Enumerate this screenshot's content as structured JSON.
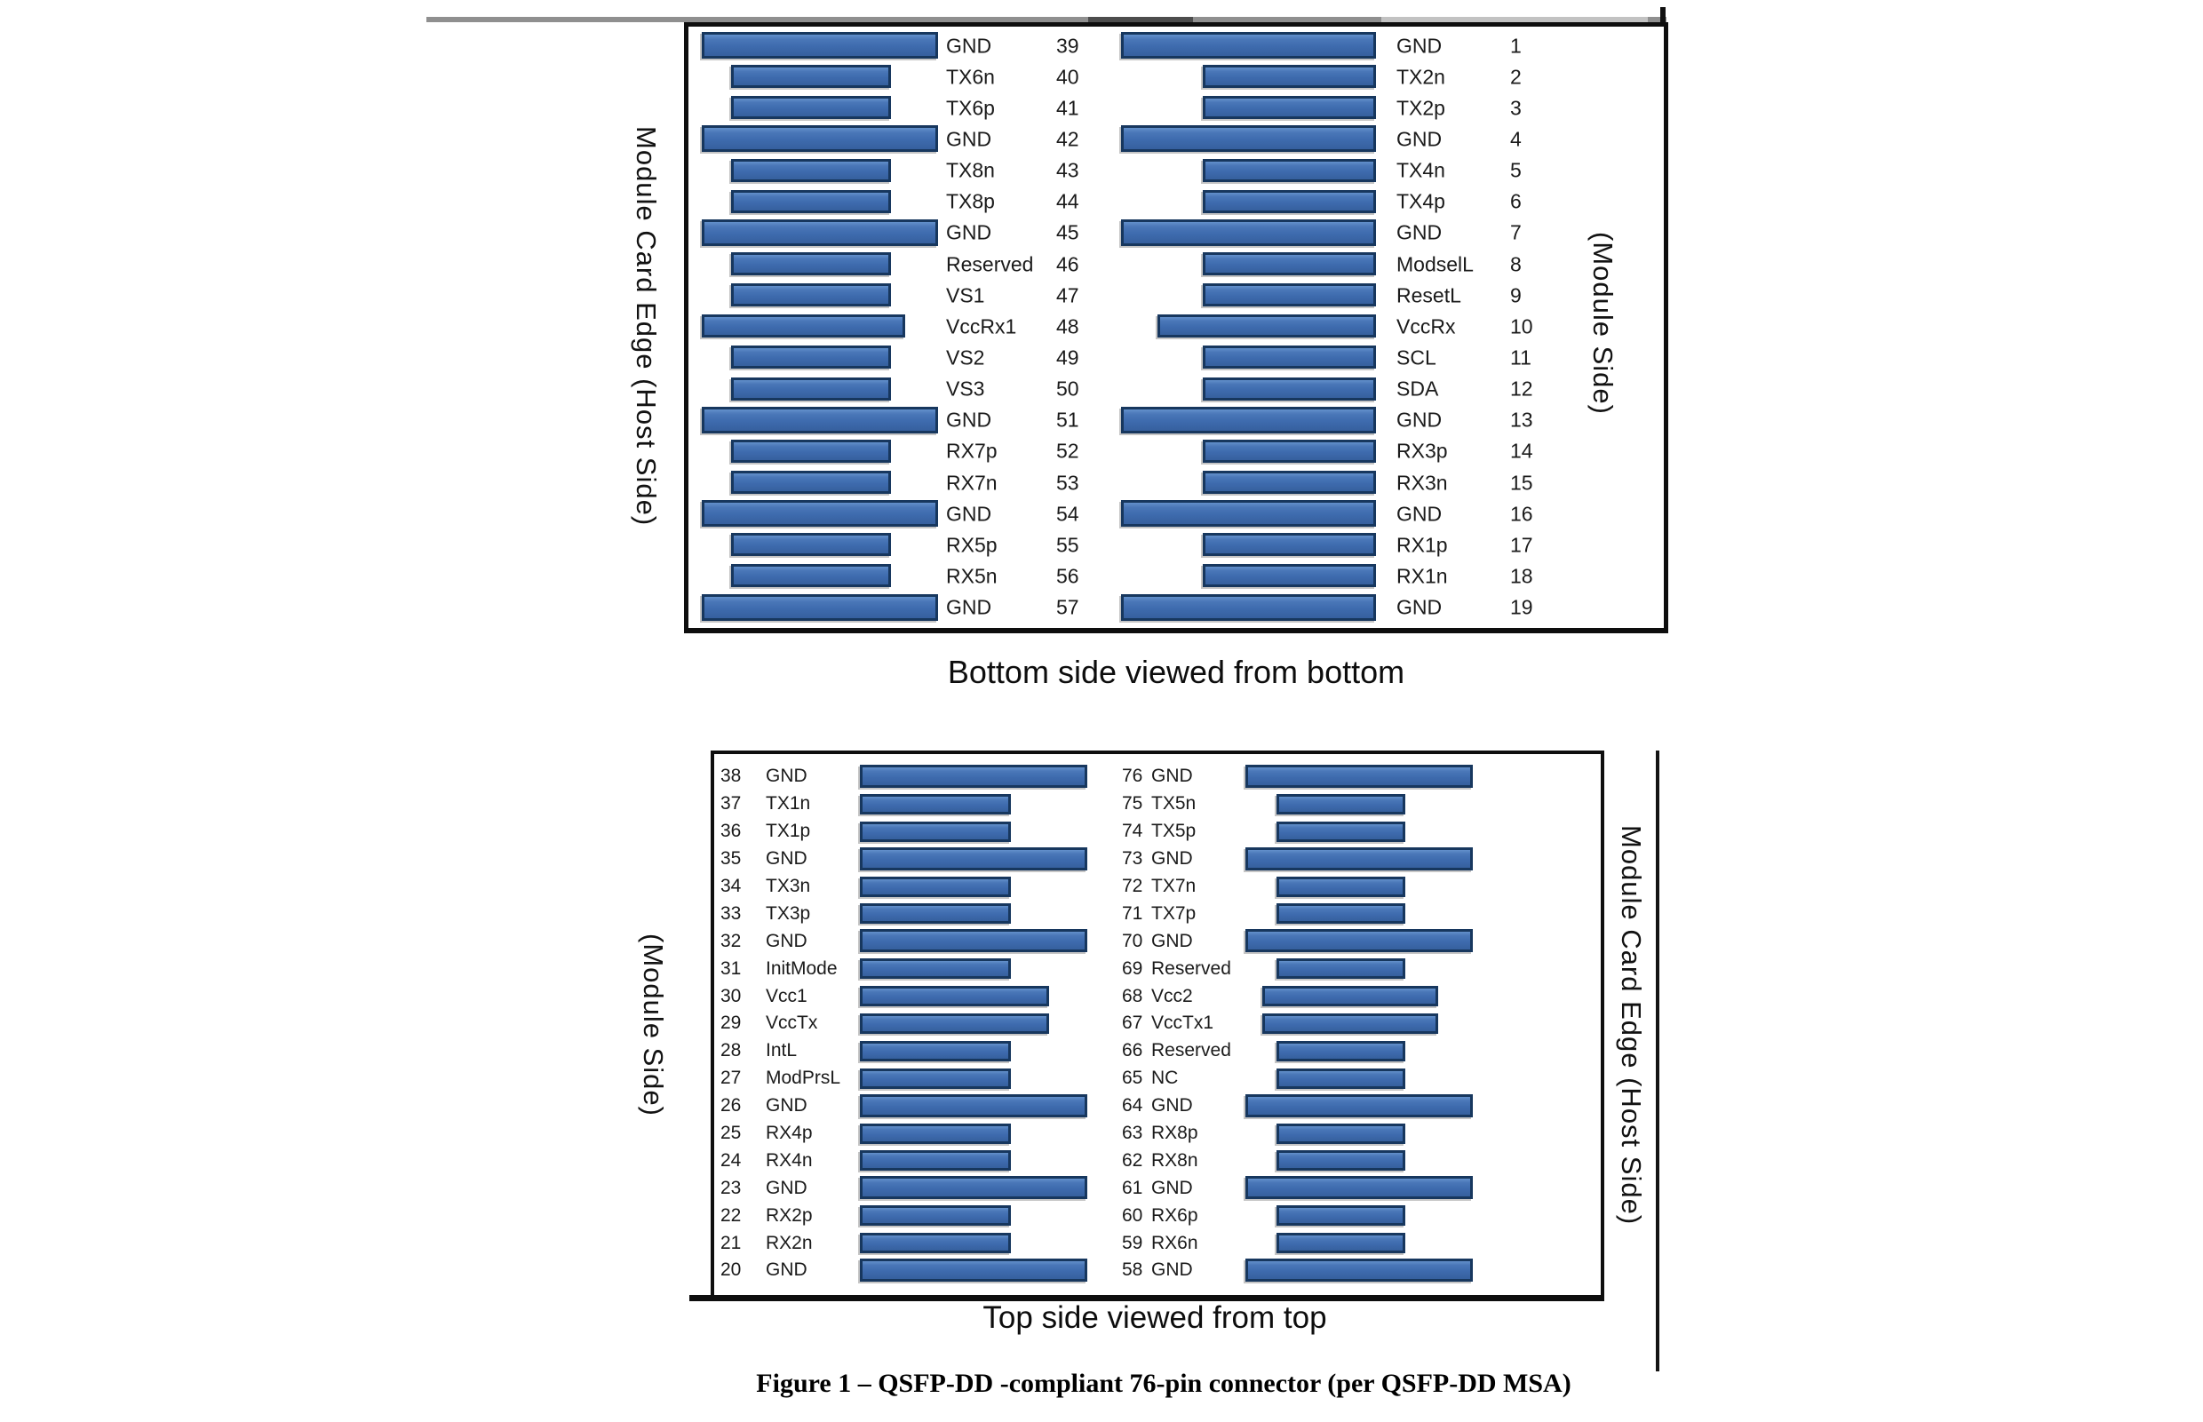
{
  "figure_caption": "Figure 1 – QSFP-DD -compliant 76-pin connector (per QSFP-DD MSA)",
  "colors": {
    "bar_fill": "#3e6bae",
    "bar_border": "#17375e",
    "bar_highlight": "#6390cb",
    "panel_border": "#0e0e0e"
  },
  "panels": [
    {
      "caption": "Bottom side viewed from bottom",
      "left_side_label": "Module Card Edge (Host Side)",
      "right_side_label": "(Module Side)",
      "left_column_pins": [
        {
          "pin": "39",
          "name": "GND",
          "pad": "long"
        },
        {
          "pin": "40",
          "name": "TX6n",
          "pad": "short"
        },
        {
          "pin": "41",
          "name": "TX6p",
          "pad": "short"
        },
        {
          "pin": "42",
          "name": "GND",
          "pad": "long"
        },
        {
          "pin": "43",
          "name": "TX8n",
          "pad": "short"
        },
        {
          "pin": "44",
          "name": "TX8p",
          "pad": "short"
        },
        {
          "pin": "45",
          "name": "GND",
          "pad": "long"
        },
        {
          "pin": "46",
          "name": "Reserved",
          "pad": "short"
        },
        {
          "pin": "47",
          "name": "VS1",
          "pad": "short"
        },
        {
          "pin": "48",
          "name": "VccRx1",
          "pad": "medium"
        },
        {
          "pin": "49",
          "name": "VS2",
          "pad": "short"
        },
        {
          "pin": "50",
          "name": "VS3",
          "pad": "short"
        },
        {
          "pin": "51",
          "name": "GND",
          "pad": "long"
        },
        {
          "pin": "52",
          "name": "RX7p",
          "pad": "short"
        },
        {
          "pin": "53",
          "name": "RX7n",
          "pad": "short"
        },
        {
          "pin": "54",
          "name": "GND",
          "pad": "long"
        },
        {
          "pin": "55",
          "name": "RX5p",
          "pad": "short"
        },
        {
          "pin": "56",
          "name": "RX5n",
          "pad": "short"
        },
        {
          "pin": "57",
          "name": "GND",
          "pad": "long"
        }
      ],
      "right_column_pins": [
        {
          "pin": "1",
          "name": "GND",
          "pad": "long"
        },
        {
          "pin": "2",
          "name": "TX2n",
          "pad": "short"
        },
        {
          "pin": "3",
          "name": "TX2p",
          "pad": "short"
        },
        {
          "pin": "4",
          "name": "GND",
          "pad": "long"
        },
        {
          "pin": "5",
          "name": "TX4n",
          "pad": "short"
        },
        {
          "pin": "6",
          "name": "TX4p",
          "pad": "short"
        },
        {
          "pin": "7",
          "name": "GND",
          "pad": "long"
        },
        {
          "pin": "8",
          "name": "ModselL",
          "pad": "short"
        },
        {
          "pin": "9",
          "name": "ResetL",
          "pad": "short"
        },
        {
          "pin": "10",
          "name": "VccRx",
          "pad": "medium"
        },
        {
          "pin": "11",
          "name": "SCL",
          "pad": "short"
        },
        {
          "pin": "12",
          "name": "SDA",
          "pad": "short"
        },
        {
          "pin": "13",
          "name": "GND",
          "pad": "long"
        },
        {
          "pin": "14",
          "name": "RX3p",
          "pad": "short"
        },
        {
          "pin": "15",
          "name": "RX3n",
          "pad": "short"
        },
        {
          "pin": "16",
          "name": "GND",
          "pad": "long"
        },
        {
          "pin": "17",
          "name": "RX1p",
          "pad": "short"
        },
        {
          "pin": "18",
          "name": "RX1n",
          "pad": "short"
        },
        {
          "pin": "19",
          "name": "GND",
          "pad": "long"
        }
      ]
    },
    {
      "caption": "Top side viewed from top",
      "left_side_label": "(Module Side)",
      "right_side_label": "Module Card Edge (Host Side)",
      "left_column_pins": [
        {
          "pin": "38",
          "name": "GND",
          "pad": "long"
        },
        {
          "pin": "37",
          "name": "TX1n",
          "pad": "short"
        },
        {
          "pin": "36",
          "name": "TX1p",
          "pad": "short"
        },
        {
          "pin": "35",
          "name": "GND",
          "pad": "long"
        },
        {
          "pin": "34",
          "name": "TX3n",
          "pad": "short"
        },
        {
          "pin": "33",
          "name": "TX3p",
          "pad": "short"
        },
        {
          "pin": "32",
          "name": "GND",
          "pad": "long"
        },
        {
          "pin": "31",
          "name": "InitMode",
          "pad": "short"
        },
        {
          "pin": "30",
          "name": "Vcc1",
          "pad": "medium"
        },
        {
          "pin": "29",
          "name": "VccTx",
          "pad": "medium"
        },
        {
          "pin": "28",
          "name": "IntL",
          "pad": "short"
        },
        {
          "pin": "27",
          "name": "ModPrsL",
          "pad": "short"
        },
        {
          "pin": "26",
          "name": "GND",
          "pad": "long"
        },
        {
          "pin": "25",
          "name": "RX4p",
          "pad": "short"
        },
        {
          "pin": "24",
          "name": "RX4n",
          "pad": "short"
        },
        {
          "pin": "23",
          "name": "GND",
          "pad": "long"
        },
        {
          "pin": "22",
          "name": "RX2p",
          "pad": "short"
        },
        {
          "pin": "21",
          "name": "RX2n",
          "pad": "short"
        },
        {
          "pin": "20",
          "name": "GND",
          "pad": "long"
        }
      ],
      "right_column_pins": [
        {
          "pin": "76",
          "name": "GND",
          "pad": "long"
        },
        {
          "pin": "75",
          "name": "TX5n",
          "pad": "short"
        },
        {
          "pin": "74",
          "name": "TX5p",
          "pad": "short"
        },
        {
          "pin": "73",
          "name": "GND",
          "pad": "long"
        },
        {
          "pin": "72",
          "name": "TX7n",
          "pad": "short"
        },
        {
          "pin": "71",
          "name": "TX7p",
          "pad": "short"
        },
        {
          "pin": "70",
          "name": "GND",
          "pad": "long"
        },
        {
          "pin": "69",
          "name": "Reserved",
          "pad": "short"
        },
        {
          "pin": "68",
          "name": "Vcc2",
          "pad": "medium"
        },
        {
          "pin": "67",
          "name": "VccTx1",
          "pad": "medium"
        },
        {
          "pin": "66",
          "name": "Reserved",
          "pad": "short"
        },
        {
          "pin": "65",
          "name": "NC",
          "pad": "short"
        },
        {
          "pin": "64",
          "name": "GND",
          "pad": "long"
        },
        {
          "pin": "63",
          "name": "RX8p",
          "pad": "short"
        },
        {
          "pin": "62",
          "name": "RX8n",
          "pad": "short"
        },
        {
          "pin": "61",
          "name": "GND",
          "pad": "long"
        },
        {
          "pin": "60",
          "name": "RX6p",
          "pad": "short"
        },
        {
          "pin": "59",
          "name": "RX6n",
          "pad": "short"
        },
        {
          "pin": "58",
          "name": "GND",
          "pad": "long"
        }
      ]
    }
  ]
}
